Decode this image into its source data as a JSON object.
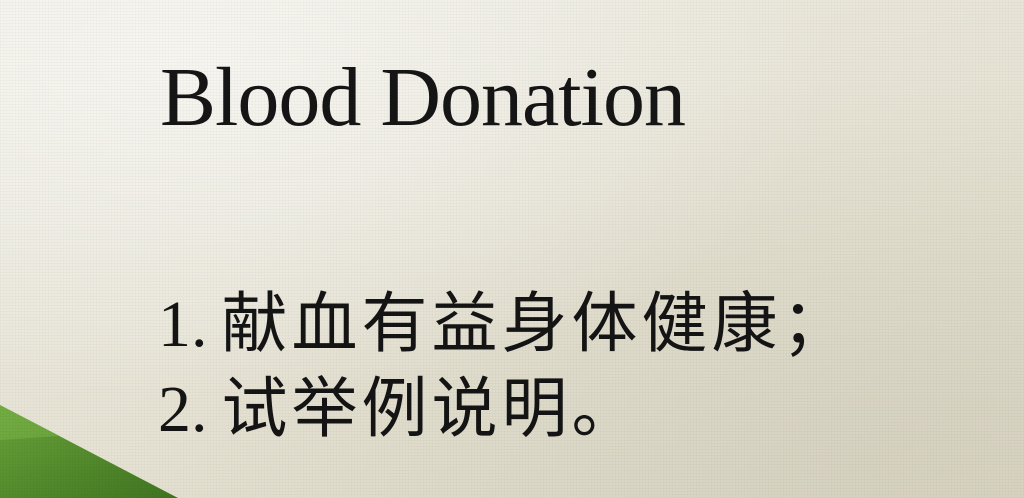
{
  "slide": {
    "title": "Blood Donation",
    "items": [
      {
        "number": "1.",
        "text": "献血有益身体健康；"
      },
      {
        "number": "2.",
        "text": "试举例说明。"
      }
    ]
  },
  "colors": {
    "background": "#e9e6d8",
    "text": "#151515",
    "accent_green": "#4f8a2c"
  }
}
